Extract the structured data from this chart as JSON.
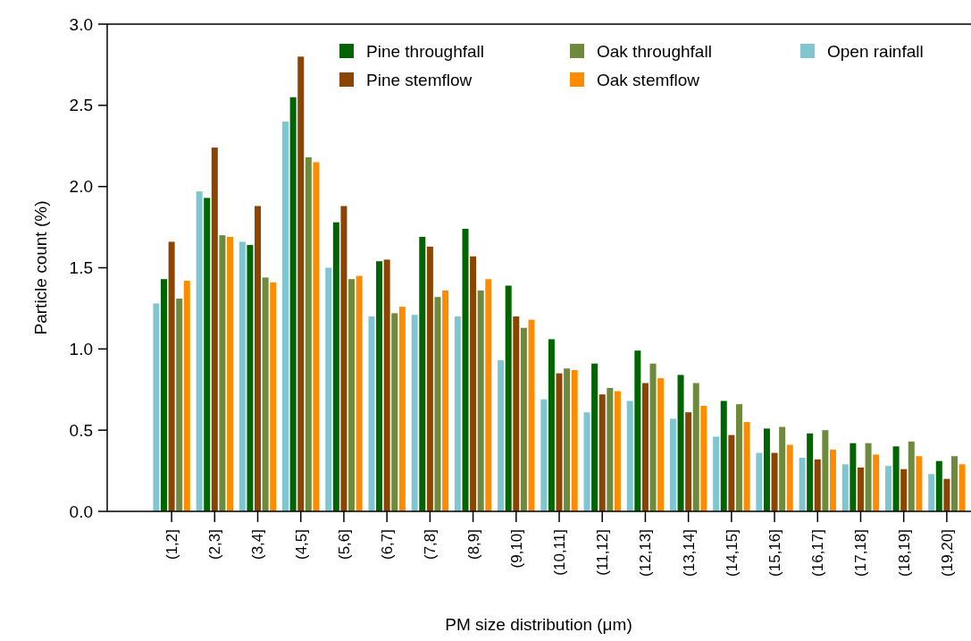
{
  "chart_data": {
    "type": "bar",
    "xlabel": "PM size distribution (μm)",
    "ylabel": "Particle count (%)",
    "categories": [
      "(1,2]",
      "(2,3]",
      "(3,4]",
      "(4,5]",
      "(5,6]",
      "(6,7]",
      "(7,8]",
      "(8,9]",
      "(9,10]",
      "(10,11]",
      "(11,12]",
      "(12,13]",
      "(13,14]",
      "(14,15]",
      "(15,16]",
      "(16,17]",
      "(17,18]",
      "(18,19]",
      "(19,20]"
    ],
    "series": [
      {
        "name": "Open rainfall",
        "color": "#7fc6d0",
        "values": [
          1.28,
          1.97,
          1.66,
          2.4,
          1.5,
          1.2,
          1.21,
          1.2,
          0.93,
          0.69,
          0.61,
          0.68,
          0.57,
          0.46,
          0.36,
          0.33,
          0.29,
          0.28,
          0.23
        ]
      },
      {
        "name": "Pine throughfall",
        "color": "#006400",
        "values": [
          1.43,
          1.93,
          1.64,
          2.55,
          1.78,
          1.54,
          1.69,
          1.74,
          1.39,
          1.06,
          0.91,
          0.99,
          0.84,
          0.68,
          0.51,
          0.48,
          0.42,
          0.4,
          0.31
        ]
      },
      {
        "name": "Pine stemflow",
        "color": "#8b4500",
        "values": [
          1.66,
          2.24,
          1.88,
          2.8,
          1.88,
          1.55,
          1.63,
          1.57,
          1.2,
          0.85,
          0.72,
          0.79,
          0.61,
          0.47,
          0.36,
          0.32,
          0.27,
          0.26,
          0.2
        ]
      },
      {
        "name": "Oak throughfall",
        "color": "#6e8b3d",
        "values": [
          1.31,
          1.7,
          1.44,
          2.18,
          1.43,
          1.22,
          1.32,
          1.36,
          1.13,
          0.88,
          0.76,
          0.91,
          0.79,
          0.66,
          0.52,
          0.5,
          0.42,
          0.43,
          0.34
        ]
      },
      {
        "name": "Oak stemflow",
        "color": "#ff8c00",
        "values": [
          1.42,
          1.69,
          1.41,
          2.15,
          1.45,
          1.26,
          1.36,
          1.43,
          1.18,
          0.87,
          0.74,
          0.82,
          0.65,
          0.55,
          0.41,
          0.38,
          0.35,
          0.34,
          0.29
        ]
      }
    ],
    "ylim": [
      0,
      3
    ],
    "yticks": [
      {
        "value": 0,
        "label": "0.0"
      },
      {
        "value": 0.5,
        "label": "0.5"
      },
      {
        "value": 1,
        "label": "1.0"
      },
      {
        "value": 1.5,
        "label": "1.5"
      },
      {
        "value": 2,
        "label": "2.0"
      },
      {
        "value": 2.5,
        "label": "2.5"
      },
      {
        "value": 3,
        "label": "3.0"
      }
    ],
    "legend": "top right",
    "grid": false
  }
}
